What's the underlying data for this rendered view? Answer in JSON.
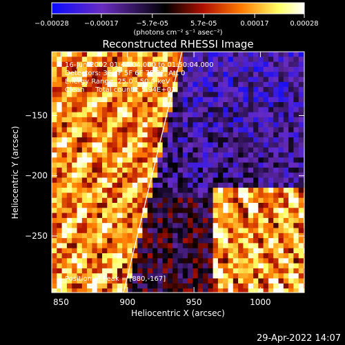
{
  "chart_data": {
    "type": "heatmap",
    "title": "Reconstructed RHESSI Image",
    "xlabel": "Heliocentric X (arcsec)",
    "ylabel": "Heliocentric Y (arcsec)",
    "xlim": [
      843,
      1033
    ],
    "ylim": [
      -297,
      -97
    ],
    "x_ticks": [
      850,
      900,
      950,
      1000
    ],
    "y_ticks": [
      -150,
      -200,
      -250
    ],
    "colorbar": {
      "min": -0.00028,
      "max": 0.00028,
      "tick_values": [
        -0.00028,
        -0.00017,
        -5.7e-05,
        5.7e-05,
        0.00017,
        0.00028
      ],
      "tick_labels": [
        "-0.00028",
        "-0.00017",
        "-5.7e-05",
        "5.7e-05",
        "0.00017",
        "0.00028"
      ],
      "units_label": "(photons cm⁻² s⁻¹ asec⁻²)",
      "colors": [
        "#0a0aff",
        "#6a2cc0",
        "#000000",
        "#b01000",
        "#ff7a00",
        "#ffff66",
        "#ffffff"
      ]
    },
    "annotations": [
      "16-Jun-2002 01:44:04.000 to 01:50:04.000",
      "Detectors: 3F 4F 5F 6F 7F 8F, Att 0",
      "Energy Range: 25.0 - 50.0 keV",
      "Clean     Total counts: 5.94E+03"
    ],
    "peak_label": "Position of Peak = [880,-167]",
    "limb_line": {
      "points": [
        [
          897,
          -297
        ],
        [
          941,
          -97
        ]
      ]
    },
    "grid": false
  },
  "footer": {
    "timestamp": "29-Apr-2022 14:07"
  }
}
